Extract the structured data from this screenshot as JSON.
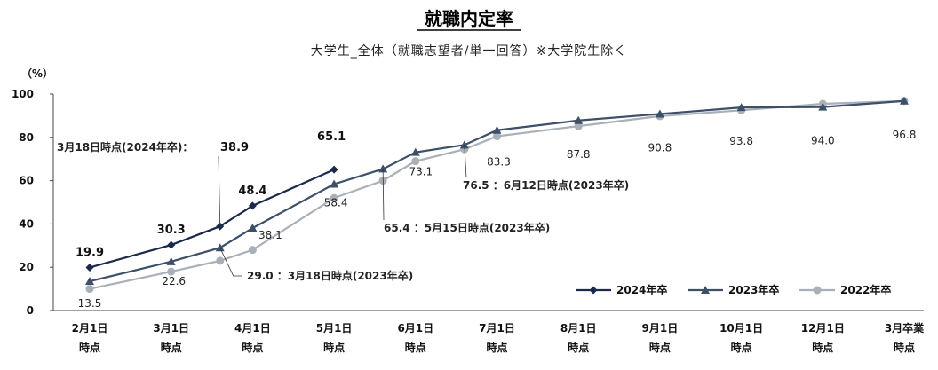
{
  "chart_data": {
    "type": "line",
    "title": "就職内定率",
    "subtitle": "大学生_全体（就職志望者/単一回答）※大学院生除く",
    "ylabel": "（%）",
    "ylim": [
      0,
      100
    ],
    "yticks": [
      "0",
      "20",
      "40",
      "60",
      "80",
      "100"
    ],
    "categories": [
      [
        "2月1日",
        "時点"
      ],
      [
        "3月1日",
        "時点"
      ],
      [
        "4月1日",
        "時点"
      ],
      [
        "5月1日",
        "時点"
      ],
      [
        "6月1日",
        "時点"
      ],
      [
        "7月1日",
        "時点"
      ],
      [
        "8月1日",
        "時点"
      ],
      [
        "9月1日",
        "時点"
      ],
      [
        "10月1日",
        "時点"
      ],
      [
        "12月1日",
        "時点"
      ],
      [
        "3月卒業",
        "時点"
      ]
    ],
    "legend_position": "bottom-right",
    "series": [
      {
        "name": "2024年卒",
        "color": "#1b2a4a",
        "marker": "diamond",
        "x": [
          0,
          1,
          1.6,
          2,
          3
        ],
        "values": [
          19.9,
          30.3,
          38.9,
          48.4,
          65.1
        ]
      },
      {
        "name": "2023年卒",
        "color": "#3d5068",
        "marker": "triangle",
        "x": [
          0,
          1,
          1.6,
          2,
          3,
          3.6,
          4,
          4.6,
          5,
          6,
          7,
          8,
          9,
          10
        ],
        "values": [
          13.5,
          22.6,
          29.0,
          38.1,
          58.4,
          65.4,
          73.1,
          76.5,
          83.3,
          87.8,
          90.8,
          93.8,
          94.0,
          96.8
        ]
      },
      {
        "name": "2022年卒",
        "color": "#a9b0b8",
        "marker": "circle",
        "x": [
          0,
          1,
          1.6,
          2,
          3,
          3.6,
          4,
          4.6,
          5,
          6,
          7,
          8,
          9,
          10
        ],
        "values": [
          10.0,
          18.0,
          23.0,
          28.0,
          52.0,
          60.0,
          69.0,
          74.5,
          80.5,
          85.2,
          89.8,
          92.5,
          95.5,
          96.8
        ]
      }
    ],
    "data_labels": [
      {
        "text": "19.9",
        "x": 0,
        "y": 19.9,
        "series": "2024年卒"
      },
      {
        "text": "30.3",
        "x": 1,
        "y": 30.3,
        "series": "2024年卒"
      },
      {
        "text": "48.4",
        "x": 2,
        "y": 48.4,
        "series": "2024年卒"
      },
      {
        "text": "65.1",
        "x": 3,
        "y": 65.1,
        "series": "2024年卒"
      },
      {
        "text": "13.5",
        "x": 0,
        "y": 13.5,
        "series": "2023年卒"
      },
      {
        "text": "22.6",
        "x": 1,
        "y": 22.6,
        "series": "2023年卒"
      },
      {
        "text": "38.1",
        "x": 2,
        "y": 38.1,
        "series": "2023年卒"
      },
      {
        "text": "58.4",
        "x": 3,
        "y": 58.4,
        "series": "2023年卒"
      },
      {
        "text": "73.1",
        "x": 4,
        "y": 73.1,
        "series": "2023年卒"
      },
      {
        "text": "83.3",
        "x": 5,
        "y": 83.3,
        "series": "2023年卒"
      },
      {
        "text": "87.8",
        "x": 6,
        "y": 87.8,
        "series": "2023年卒"
      },
      {
        "text": "90.8",
        "x": 7,
        "y": 90.8,
        "series": "2023年卒"
      },
      {
        "text": "93.8",
        "x": 8,
        "y": 93.8,
        "series": "2023年卒"
      },
      {
        "text": "94.0",
        "x": 9,
        "y": 94.0,
        "series": "2023年卒"
      },
      {
        "text": "96.8",
        "x": 10,
        "y": 96.8,
        "series": "2023年卒"
      }
    ],
    "annotations": [
      {
        "prefix": "3月18日時点(2024年卒)：",
        "value": "38.9",
        "x": 1.6,
        "y": 38.9
      },
      {
        "text": "29.0 ：3月18日時点(2023年卒)",
        "x": 1.6,
        "y": 29.0
      },
      {
        "text": "65.4 ：5月15日時点(2023年卒)",
        "x": 3.6,
        "y": 65.4
      },
      {
        "text": "76.5 ：6月12日時点(2023年卒)",
        "x": 4.6,
        "y": 76.5
      }
    ]
  }
}
